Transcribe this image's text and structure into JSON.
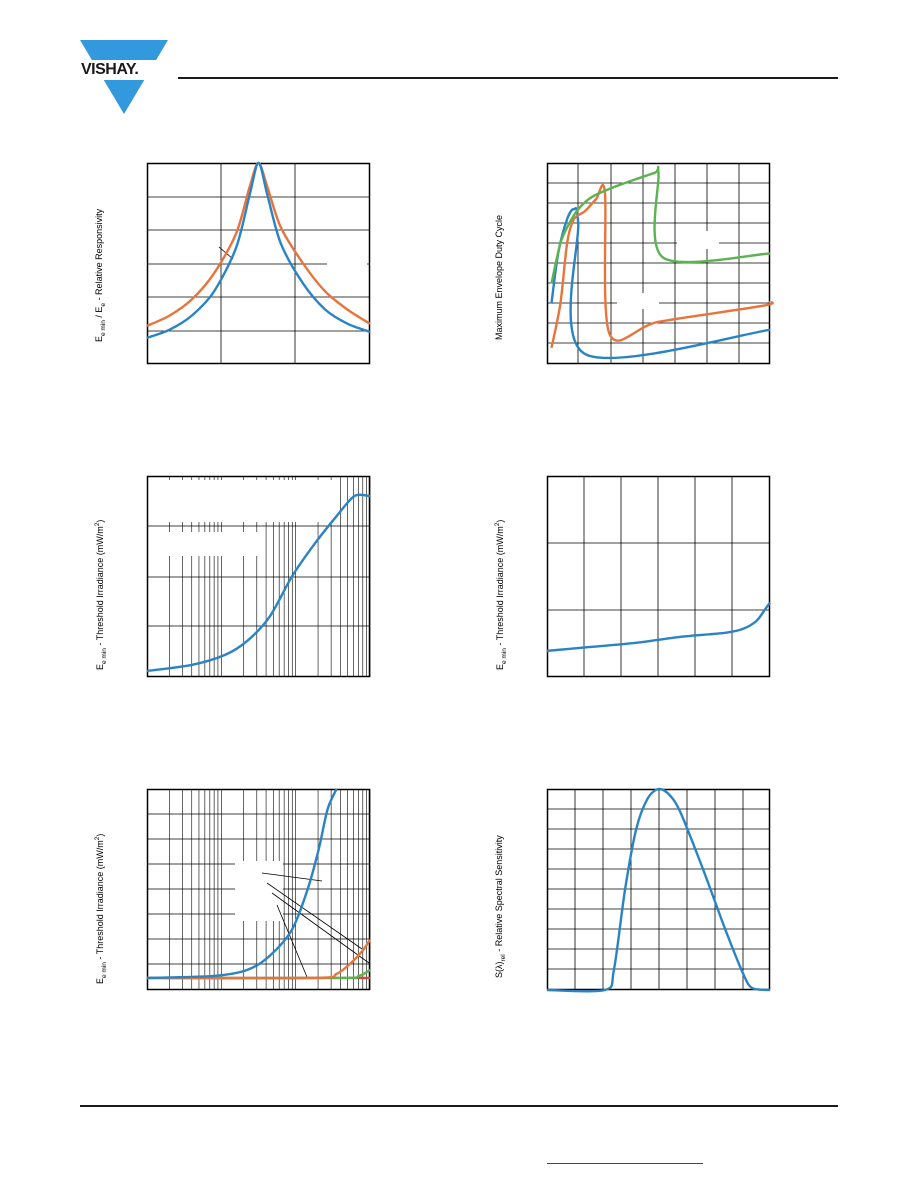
{
  "header": {
    "brand": "VISHAY.",
    "brand_color": "#3399dd"
  },
  "colors": {
    "blue": "#2a83c4",
    "orange": "#e8743b",
    "green": "#5ab44f",
    "red": "#d6463b",
    "grid": "#000000"
  },
  "charts": [
    {
      "id": "c1",
      "ylabel_parts": [
        "E",
        "e min",
        " / E",
        "e",
        " - Relative Responsivity"
      ],
      "chart_data": {
        "type": "line",
        "xlim": [
          0,
          1
        ],
        "ylim": [
          0,
          1
        ],
        "series": [
          {
            "color": "orange",
            "points": [
              [
                0,
                0.19
              ],
              [
                0.1,
                0.24
              ],
              [
                0.2,
                0.32
              ],
              [
                0.3,
                0.45
              ],
              [
                0.4,
                0.65
              ],
              [
                0.46,
                0.88
              ],
              [
                0.5,
                1.0
              ],
              [
                0.54,
                0.88
              ],
              [
                0.6,
                0.68
              ],
              [
                0.7,
                0.5
              ],
              [
                0.8,
                0.36
              ],
              [
                0.9,
                0.27
              ],
              [
                1,
                0.2
              ]
            ]
          },
          {
            "color": "blue",
            "points": [
              [
                0,
                0.13
              ],
              [
                0.1,
                0.17
              ],
              [
                0.2,
                0.24
              ],
              [
                0.3,
                0.36
              ],
              [
                0.4,
                0.58
              ],
              [
                0.46,
                0.84
              ],
              [
                0.5,
                1.0
              ],
              [
                0.54,
                0.84
              ],
              [
                0.6,
                0.6
              ],
              [
                0.7,
                0.4
              ],
              [
                0.8,
                0.27
              ],
              [
                0.9,
                0.2
              ],
              [
                1,
                0.16
              ]
            ]
          }
        ]
      }
    },
    {
      "id": "c2",
      "ylabel_parts": [
        "Maximum Envelope Duty Cycle"
      ],
      "chart_data": {
        "type": "line",
        "xlim": [
          0,
          1
        ],
        "ylim": [
          0,
          1
        ],
        "series": [
          {
            "color": "blue",
            "points": [
              [
                0.02,
                0.3
              ],
              [
                0.05,
                0.55
              ],
              [
                0.09,
                0.72
              ],
              [
                0.12,
                0.77
              ],
              [
                0.14,
                0.7
              ],
              [
                0.17,
                0.05
              ],
              [
                1,
                0.17
              ]
            ]
          },
          {
            "color": "orange",
            "points": [
              [
                0.02,
                0.08
              ],
              [
                0.06,
                0.3
              ],
              [
                0.09,
                0.6
              ],
              [
                0.12,
                0.72
              ],
              [
                0.17,
                0.76
              ],
              [
                0.22,
                0.82
              ],
              [
                0.26,
                0.85
              ],
              [
                0.28,
                0.15
              ],
              [
                0.5,
                0.21
              ],
              [
                0.97,
                0.29
              ],
              [
                1,
                0.31
              ]
            ]
          },
          {
            "color": "green",
            "points": [
              [
                0.02,
                0.4
              ],
              [
                0.06,
                0.6
              ],
              [
                0.1,
                0.7
              ],
              [
                0.14,
                0.77
              ],
              [
                0.2,
                0.83
              ],
              [
                0.3,
                0.88
              ],
              [
                0.48,
                0.95
              ],
              [
                0.5,
                0.95
              ],
              [
                0.52,
                0.53
              ],
              [
                1,
                0.55
              ]
            ]
          }
        ]
      }
    },
    {
      "id": "c3",
      "ylabel_parts": [
        "E",
        "e min",
        " - Threshold Irradiance (mW/m",
        "2",
        ")"
      ],
      "chart_data": {
        "type": "line",
        "xlim": [
          0,
          1
        ],
        "ylim": [
          0,
          1
        ],
        "series": [
          {
            "color": "blue",
            "points": [
              [
                0,
                0.03
              ],
              [
                0.2,
                0.06
              ],
              [
                0.35,
                0.11
              ],
              [
                0.45,
                0.18
              ],
              [
                0.55,
                0.3
              ],
              [
                0.65,
                0.5
              ],
              [
                0.75,
                0.66
              ],
              [
                0.85,
                0.8
              ],
              [
                0.93,
                0.9
              ],
              [
                1,
                0.9
              ]
            ]
          }
        ]
      }
    },
    {
      "id": "c4",
      "ylabel_parts": [
        "E",
        "e min",
        " - Threshold Irradiance (mW/m",
        "2",
        ")"
      ],
      "chart_data": {
        "type": "line",
        "xlim": [
          0,
          1
        ],
        "ylim": [
          0,
          1
        ],
        "series": [
          {
            "color": "blue",
            "points": [
              [
                0,
                0.13
              ],
              [
                0.2,
                0.15
              ],
              [
                0.4,
                0.17
              ],
              [
                0.6,
                0.2
              ],
              [
                0.8,
                0.22
              ],
              [
                0.88,
                0.24
              ],
              [
                0.94,
                0.28
              ],
              [
                0.98,
                0.34
              ],
              [
                1,
                0.37
              ]
            ]
          }
        ]
      }
    },
    {
      "id": "c5",
      "ylabel_parts": [
        "E",
        "e min",
        " - Threshold Irradiance (mW/m",
        "2",
        ")"
      ],
      "chart_data": {
        "type": "line",
        "xlim": [
          0,
          1
        ],
        "ylim": [
          0,
          1
        ],
        "series": [
          {
            "color": "red",
            "points": [
              [
                0,
                0.06
              ],
              [
                1,
                0.06
              ]
            ]
          },
          {
            "color": "green",
            "points": [
              [
                0,
                0.06
              ],
              [
                0.85,
                0.06
              ],
              [
                0.95,
                0.07
              ],
              [
                1,
                0.1
              ]
            ]
          },
          {
            "color": "orange",
            "points": [
              [
                0,
                0.06
              ],
              [
                0.75,
                0.06
              ],
              [
                0.85,
                0.08
              ],
              [
                0.92,
                0.14
              ],
              [
                0.97,
                0.2
              ],
              [
                1,
                0.25
              ]
            ]
          },
          {
            "color": "blue",
            "points": [
              [
                0,
                0.06
              ],
              [
                0.3,
                0.07
              ],
              [
                0.45,
                0.1
              ],
              [
                0.55,
                0.17
              ],
              [
                0.65,
                0.3
              ],
              [
                0.72,
                0.5
              ],
              [
                0.77,
                0.7
              ],
              [
                0.81,
                0.9
              ],
              [
                0.85,
                1.0
              ]
            ]
          }
        ]
      }
    },
    {
      "id": "c6",
      "ylabel_parts": [
        "S(λ)",
        "rel",
        " - Relative Spectral Sensitivity"
      ],
      "chart_data": {
        "type": "line",
        "xlim": [
          0,
          1
        ],
        "ylim": [
          0,
          1
        ],
        "series": [
          {
            "color": "blue",
            "points": [
              [
                0,
                0
              ],
              [
                0.26,
                0
              ],
              [
                0.3,
                0.1
              ],
              [
                0.35,
                0.5
              ],
              [
                0.4,
                0.8
              ],
              [
                0.45,
                0.95
              ],
              [
                0.5,
                1.0
              ],
              [
                0.55,
                0.97
              ],
              [
                0.6,
                0.88
              ],
              [
                0.7,
                0.6
              ],
              [
                0.8,
                0.3
              ],
              [
                0.88,
                0.08
              ],
              [
                0.92,
                0.01
              ],
              [
                1,
                0
              ]
            ]
          }
        ]
      }
    }
  ]
}
